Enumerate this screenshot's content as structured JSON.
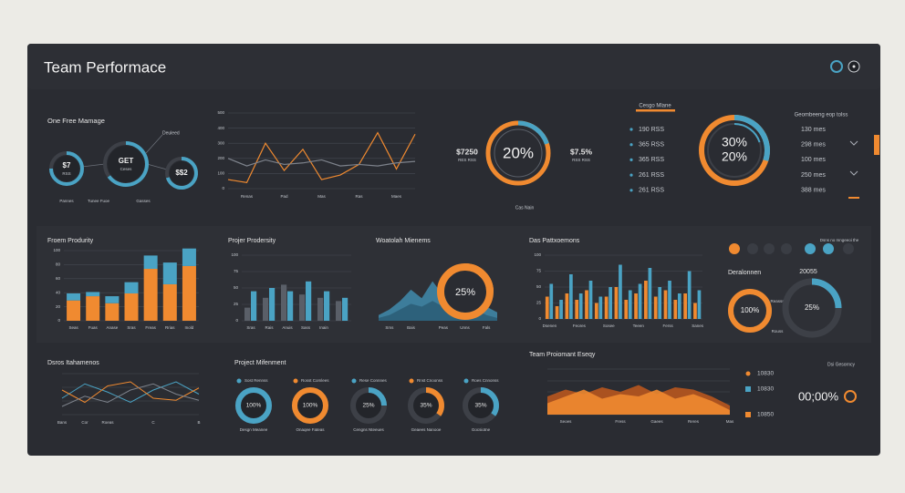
{
  "header": {
    "title": "Team Performace"
  },
  "money": {
    "title": "One Free Mamage",
    "callout": "Deuleed",
    "gauges": [
      {
        "label": "$7",
        "sub": "RSS",
        "caption": "Pannes",
        "value": 75
      },
      {
        "label": "GET",
        "sub": "Ceses",
        "caption": "Tunee Fuoe",
        "value": 65
      },
      {
        "label": "$$2",
        "caption": "Gasses",
        "value": 70
      }
    ]
  },
  "trend": {
    "ylim": [
      0,
      500
    ],
    "yticks": [
      0,
      100,
      200,
      300,
      400,
      500
    ],
    "categories": [
      null,
      "Renas",
      null,
      "Pad",
      null,
      "Mas",
      null,
      "Ras",
      null,
      "Maes",
      null
    ],
    "series": [
      {
        "color": "#f08a30",
        "values": [
          60,
          40,
          300,
          120,
          260,
          60,
          90,
          160,
          370,
          130,
          360
        ]
      },
      {
        "color": "#7d828b",
        "values": [
          200,
          150,
          190,
          160,
          170,
          190,
          150,
          160,
          150,
          170,
          180
        ]
      }
    ]
  },
  "rate": {
    "value": 20,
    "label": "20%",
    "left": {
      "amount": "$7250",
      "sub": "RES RSS"
    },
    "right": {
      "amount": "$7.5%",
      "sub": "RSS RSS"
    },
    "caption": "Cas Nain"
  },
  "costs": {
    "title": "Cesgo Mlane",
    "items": [
      "190 RSS",
      "365 RSS",
      "365 RSS",
      "261 RSS",
      "261 RSS"
    ]
  },
  "share": {
    "values": [
      30,
      20
    ],
    "labels": [
      "30%",
      "20%"
    ],
    "title": "Geombeeng eop tolss",
    "items": [
      "130 mes",
      "298 mes",
      "100 mes",
      "250 mes",
      "388 mes"
    ]
  },
  "productivity": {
    "title": "Froem Produrity",
    "ylim": [
      0,
      100
    ],
    "yticks": [
      0,
      20,
      40,
      60,
      80,
      100
    ],
    "categories": [
      "Seas",
      "Fuas",
      "Anase",
      "Sras",
      "Freas",
      "Rrias",
      "Inold"
    ],
    "series": [
      {
        "color": "#f08a30",
        "values": [
          29,
          35,
          25,
          39,
          74,
          52,
          78
        ]
      },
      {
        "color": "#4aa3c4",
        "values": [
          10,
          6,
          10,
          16,
          19,
          31,
          25
        ]
      }
    ]
  },
  "projects": {
    "title": "Projer Prodersity",
    "ylim": [
      0,
      100
    ],
    "yticks": [
      0,
      25,
      50,
      75,
      100
    ],
    "categories": [
      "Sras",
      "Rais",
      "Anuis",
      "Sass",
      "Inain",
      null
    ],
    "series": [
      {
        "color": "#5a5f68",
        "values": [
          20,
          35,
          55,
          40,
          35,
          30
        ]
      },
      {
        "color": "#4aa3c4",
        "values": [
          45,
          50,
          45,
          60,
          45,
          35
        ]
      }
    ]
  },
  "wave": {
    "title": "Woatolah Mienems",
    "ylim": [
      0,
      100
    ],
    "categories": [
      null,
      "Sms",
      null,
      "Bais",
      null,
      null,
      "Peas",
      null,
      "Unns",
      null,
      "Fals",
      null
    ],
    "series": [
      {
        "color": "#3f86a6",
        "values": [
          10,
          20,
          35,
          55,
          40,
          70,
          45,
          30,
          60,
          40,
          25,
          15
        ]
      },
      {
        "color": "#2b5e78",
        "values": [
          5,
          10,
          20,
          30,
          25,
          35,
          25,
          20,
          30,
          20,
          10,
          5
        ]
      }
    ],
    "donut": {
      "value": 25,
      "label": "25%"
    }
  },
  "patterns": {
    "title": "Das Pattxoemons",
    "ylim": [
      0,
      100
    ],
    "yticks": [
      0,
      25,
      50,
      75,
      100
    ],
    "categories": [
      "Dsenen",
      null,
      null,
      "Feores",
      null,
      null,
      "Sosee",
      null,
      null,
      "Teeen",
      null,
      null,
      "Ferss",
      null,
      null,
      "Sanes"
    ],
    "series": [
      {
        "color": "#f08a30",
        "values": [
          35,
          20,
          40,
          30,
          45,
          25,
          35,
          50,
          30,
          40,
          60,
          35,
          45,
          30,
          40,
          25
        ]
      },
      {
        "color": "#4aa3c4",
        "values": [
          55,
          30,
          70,
          40,
          60,
          35,
          50,
          85,
          45,
          55,
          80,
          50,
          60,
          40,
          75,
          45
        ]
      }
    ]
  },
  "summary": {
    "note": "Dsns no mngeeoi the",
    "title": "Deralonnen",
    "figure": "20055",
    "donuts": [
      {
        "value": 100,
        "label": "100%",
        "caption": "Reasss"
      },
      {
        "value": 25,
        "label": "25%",
        "caption": "Rouss"
      }
    ]
  },
  "milestones": {
    "title": "Dsros Itahamenos",
    "ylim": [
      0,
      100
    ],
    "categories": [
      "Bans",
      "Cor",
      "Roeas",
      null,
      "C",
      null,
      "B"
    ],
    "series": [
      {
        "color": "#4aa3c4",
        "values": [
          40,
          75,
          55,
          30,
          60,
          80,
          50
        ]
      },
      {
        "color": "#f08a30",
        "values": [
          60,
          30,
          70,
          80,
          40,
          35,
          65
        ]
      },
      {
        "color": "#7d828b",
        "values": [
          20,
          45,
          30,
          60,
          75,
          50,
          35
        ]
      }
    ]
  },
  "project": {
    "title": "Project Mifenment",
    "items": [
      {
        "legend": "Sost Rennss",
        "value": 100,
        "label": "100%",
        "caption": "Desgn Meanee",
        "color": "#4aa3c4"
      },
      {
        "legend": "Rosst Comlees",
        "value": 100,
        "label": "100%",
        "caption": "Onaqee Fateas",
        "color": "#f08a30"
      },
      {
        "legend": "Rese Connnes",
        "value": 25,
        "label": "25%",
        "caption": "Cengns Nteeues",
        "color": "#4aa3c4"
      },
      {
        "legend": "Rnst Cnoonss",
        "value": 35,
        "label": "35%",
        "caption": "Geaees Nanooe",
        "color": "#f08a30"
      },
      {
        "legend": "Roes Cnnonss",
        "value": 35,
        "label": "35%",
        "caption": "Gocsiotne",
        "color": "#4aa3c4"
      }
    ]
  },
  "team": {
    "title": "Team Proiomant Eseqy",
    "ylim": [
      0,
      100
    ],
    "categories": [
      null,
      "Seoes",
      null,
      null,
      "Fress",
      null,
      "Gaees",
      null,
      "Reres",
      null,
      "Mas"
    ],
    "series": [
      {
        "color": "#b8561e",
        "values": [
          40,
          55,
          45,
          60,
          50,
          65,
          45,
          60,
          55,
          40,
          20
        ]
      },
      {
        "color": "#f08a30",
        "values": [
          25,
          40,
          55,
          35,
          45,
          40,
          55,
          35,
          45,
          30,
          10
        ]
      }
    ]
  },
  "status": {
    "title": "Dsi Gesorncy",
    "items": [
      "10830",
      "10830",
      "10850"
    ],
    "figure": "00;00%"
  }
}
